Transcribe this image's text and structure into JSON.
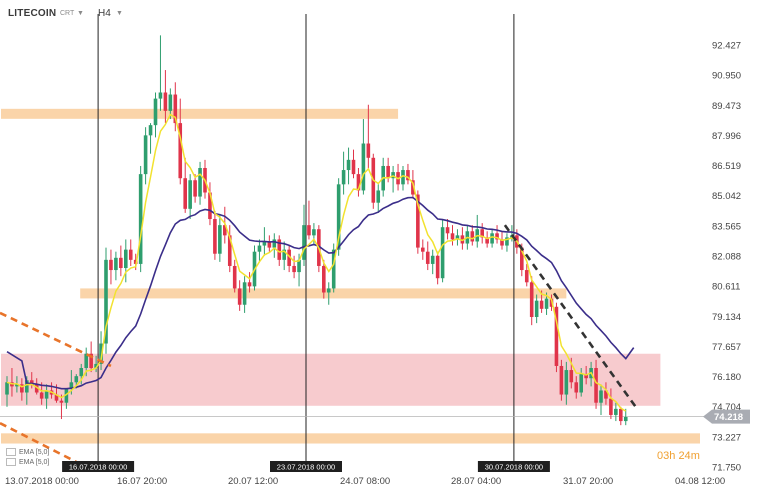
{
  "header": {
    "symbol": "LITECOIN",
    "type": "CRT",
    "timeframe": "H4"
  },
  "legend": {
    "ema1": "EMA",
    "ema1_param": "[5,0]",
    "ema2": "EMA",
    "ema2_param": "[5,0]"
  },
  "countdown": {
    "hours": "03",
    "h_unit": "h",
    "minutes": "24",
    "m_unit": "m"
  },
  "colors": {
    "bull": "#2e9e6e",
    "bear": "#e0344a",
    "ema_fast": "#f2e230",
    "ema_slow": "#3b2e8a",
    "orange_zone": "#f9cfa0",
    "red_zone": "#f6c2c6",
    "trend_orange": "#e8742a",
    "trend_dark": "#333333",
    "price_tag": "#a9acb3"
  },
  "chart_data": {
    "type": "candlestick",
    "title": "",
    "xlabel": "",
    "ylabel": "",
    "ylim": [
      71.75,
      94.2
    ],
    "y_ticks": [
      "92.427",
      "90.950",
      "89.473",
      "87.996",
      "86.519",
      "85.042",
      "83.565",
      "82.088",
      "80.611",
      "79.134",
      "77.657",
      "76.180",
      "74.704",
      "73.227",
      "71.750"
    ],
    "x_ticks": [
      "13.07.2018  00:00",
      "16.07  20:00",
      "20.07  12:00",
      "24.07  08:00",
      "28.07  04:00",
      "31.07  20:00",
      "04.08  12:00"
    ],
    "current_price": "74.218",
    "vertical_markers": [
      {
        "label": "16.07.2018 00:00",
        "bar": 18
      },
      {
        "label": "23.07.2018 00:00",
        "bar": 60
      },
      {
        "label": "30.07.2018 00:00",
        "bar": 102
      }
    ],
    "zones": [
      {
        "kind": "orange",
        "from_bar": 0,
        "to_bar": 79,
        "low": 88.9,
        "high": 89.3
      },
      {
        "kind": "orange",
        "from_bar": 16,
        "to_bar": 113,
        "low": 80.1,
        "high": 80.5
      },
      {
        "kind": "red",
        "from_bar": 0,
        "to_bar": 132,
        "low": 74.75,
        "high": 77.3
      },
      {
        "kind": "orange",
        "from_bar": 0,
        "to_bar": 140,
        "low": 72.9,
        "high": 73.4
      }
    ],
    "trendlines": [
      {
        "color": "orange",
        "from": [
          0,
          79.3
        ],
        "to": [
          21,
          76.7
        ]
      },
      {
        "color": "orange",
        "from": [
          0,
          73.9
        ],
        "to": [
          14,
          72.0
        ]
      },
      {
        "color": "dark",
        "from": [
          102,
          83.6
        ],
        "to": [
          127,
          74.7
        ]
      }
    ],
    "candles_ohlc": [
      [
        75.3,
        76.2,
        74.7,
        75.9
      ],
      [
        75.9,
        76.6,
        75.2,
        75.7
      ],
      [
        75.7,
        76.2,
        75.4,
        75.8
      ],
      [
        75.8,
        76.1,
        75.0,
        75.4
      ],
      [
        75.4,
        76.2,
        74.8,
        76.0
      ],
      [
        76.0,
        76.4,
        75.6,
        75.8
      ],
      [
        75.8,
        76.1,
        75.3,
        75.4
      ],
      [
        75.4,
        75.9,
        74.8,
        75.1
      ],
      [
        75.1,
        75.8,
        74.6,
        75.5
      ],
      [
        75.5,
        75.9,
        75.1,
        75.3
      ],
      [
        75.3,
        75.8,
        74.9,
        75.0
      ],
      [
        75.0,
        75.3,
        74.1,
        74.9
      ],
      [
        74.9,
        75.2,
        74.6,
        75.6
      ],
      [
        75.6,
        76.5,
        75.3,
        75.9
      ],
      [
        75.9,
        76.3,
        75.6,
        76.2
      ],
      [
        76.2,
        76.8,
        75.8,
        76.6
      ],
      [
        76.6,
        77.6,
        76.2,
        77.3
      ],
      [
        77.3,
        77.9,
        76.4,
        76.6
      ],
      [
        76.6,
        77.2,
        76.4,
        76.8
      ],
      [
        76.8,
        78.4,
        76.5,
        77.8
      ],
      [
        77.8,
        82.5,
        77.3,
        81.9
      ],
      [
        81.9,
        82.4,
        80.7,
        81.4
      ],
      [
        81.4,
        82.3,
        80.9,
        82.0
      ],
      [
        82.0,
        82.6,
        81.1,
        81.5
      ],
      [
        81.5,
        82.9,
        80.8,
        82.4
      ],
      [
        82.4,
        82.9,
        81.6,
        81.9
      ],
      [
        81.9,
        82.2,
        81.4,
        81.7
      ],
      [
        81.7,
        86.5,
        81.3,
        86.1
      ],
      [
        86.1,
        88.4,
        85.6,
        88.0
      ],
      [
        88.0,
        88.6,
        87.1,
        88.5
      ],
      [
        88.5,
        90.1,
        87.9,
        89.8
      ],
      [
        89.8,
        92.9,
        89.2,
        90.1
      ],
      [
        90.1,
        91.2,
        88.6,
        89.2
      ],
      [
        89.2,
        90.3,
        88.8,
        90.0
      ],
      [
        90.0,
        90.6,
        88.2,
        88.6
      ],
      [
        88.6,
        89.8,
        85.6,
        85.9
      ],
      [
        85.9,
        86.9,
        84.2,
        84.4
      ],
      [
        84.4,
        86.1,
        83.9,
        85.8
      ],
      [
        85.8,
        86.1,
        84.7,
        85.0
      ],
      [
        85.0,
        86.7,
        84.6,
        86.4
      ],
      [
        86.4,
        86.8,
        84.9,
        85.2
      ],
      [
        85.2,
        85.7,
        83.6,
        83.9
      ],
      [
        83.9,
        84.3,
        81.9,
        82.2
      ],
      [
        82.2,
        84.1,
        81.8,
        83.6
      ],
      [
        83.6,
        84.5,
        82.7,
        83.1
      ],
      [
        83.1,
        83.6,
        81.3,
        81.6
      ],
      [
        81.6,
        81.9,
        80.3,
        80.5
      ],
      [
        80.5,
        80.9,
        79.4,
        79.7
      ],
      [
        79.7,
        81.1,
        79.3,
        80.8
      ],
      [
        80.8,
        81.3,
        80.3,
        80.6
      ],
      [
        80.6,
        82.6,
        80.4,
        82.3
      ],
      [
        82.3,
        82.9,
        81.8,
        82.6
      ],
      [
        82.6,
        83.5,
        82.1,
        82.8
      ],
      [
        82.8,
        83.1,
        82.3,
        82.5
      ],
      [
        82.5,
        83.2,
        82.0,
        82.9
      ],
      [
        82.9,
        83.1,
        81.6,
        81.9
      ],
      [
        81.9,
        82.8,
        81.4,
        82.4
      ],
      [
        82.4,
        82.6,
        81.3,
        81.6
      ],
      [
        81.6,
        82.1,
        81.0,
        81.3
      ],
      [
        81.3,
        82.2,
        80.6,
        81.9
      ],
      [
        81.9,
        84.6,
        81.6,
        83.6
      ],
      [
        83.6,
        84.8,
        82.9,
        83.1
      ],
      [
        83.1,
        83.7,
        82.6,
        83.4
      ],
      [
        83.4,
        83.6,
        81.3,
        81.6
      ],
      [
        81.6,
        81.9,
        80.0,
        80.3
      ],
      [
        80.3,
        80.8,
        79.7,
        80.5
      ],
      [
        80.5,
        82.7,
        80.3,
        82.4
      ],
      [
        82.4,
        85.9,
        82.1,
        85.6
      ],
      [
        85.6,
        87.2,
        85.1,
        86.3
      ],
      [
        86.3,
        87.4,
        85.6,
        86.8
      ],
      [
        86.8,
        87.3,
        85.9,
        86.1
      ],
      [
        86.1,
        86.4,
        85.0,
        85.3
      ],
      [
        85.3,
        88.8,
        85.1,
        87.6
      ],
      [
        87.6,
        89.5,
        86.4,
        86.9
      ],
      [
        86.9,
        87.1,
        84.4,
        84.7
      ],
      [
        84.7,
        85.6,
        84.2,
        85.3
      ],
      [
        85.3,
        86.9,
        85.0,
        86.5
      ],
      [
        86.5,
        86.9,
        85.7,
        85.9
      ],
      [
        85.9,
        86.5,
        85.2,
        86.2
      ],
      [
        86.2,
        86.6,
        85.3,
        85.6
      ],
      [
        85.6,
        86.5,
        85.3,
        86.3
      ],
      [
        86.3,
        86.6,
        85.6,
        85.8
      ],
      [
        85.8,
        86.3,
        84.9,
        85.1
      ],
      [
        85.1,
        85.3,
        82.2,
        82.5
      ],
      [
        82.5,
        82.9,
        81.9,
        82.3
      ],
      [
        82.3,
        82.8,
        81.4,
        81.7
      ],
      [
        81.7,
        82.4,
        81.2,
        82.1
      ],
      [
        82.1,
        82.3,
        80.7,
        81.0
      ],
      [
        81.0,
        83.9,
        80.8,
        83.5
      ],
      [
        83.5,
        83.9,
        82.9,
        83.2
      ],
      [
        83.2,
        83.6,
        82.6,
        82.9
      ],
      [
        82.9,
        83.4,
        82.6,
        83.1
      ],
      [
        83.1,
        83.5,
        82.4,
        82.7
      ],
      [
        82.7,
        83.6,
        82.4,
        83.3
      ],
      [
        83.3,
        83.6,
        82.6,
        82.8
      ],
      [
        82.8,
        84.1,
        82.5,
        83.4
      ],
      [
        83.4,
        83.7,
        82.7,
        83.0
      ],
      [
        83.0,
        83.3,
        82.5,
        82.7
      ],
      [
        82.7,
        83.4,
        82.5,
        83.2
      ],
      [
        83.2,
        83.6,
        82.7,
        82.9
      ],
      [
        82.9,
        83.3,
        82.4,
        82.6
      ],
      [
        82.6,
        83.2,
        82.3,
        83.0
      ],
      [
        83.0,
        83.6,
        82.8,
        83.1
      ],
      [
        83.1,
        83.4,
        82.2,
        82.5
      ],
      [
        82.5,
        82.7,
        81.1,
        81.4
      ],
      [
        81.4,
        81.7,
        80.6,
        80.8
      ],
      [
        80.8,
        81.1,
        78.7,
        79.1
      ],
      [
        79.1,
        80.2,
        78.8,
        79.9
      ],
      [
        79.9,
        80.4,
        79.3,
        79.5
      ],
      [
        79.5,
        80.3,
        79.2,
        80.0
      ],
      [
        80.0,
        80.2,
        79.4,
        79.6
      ],
      [
        79.6,
        79.8,
        76.4,
        76.7
      ],
      [
        76.7,
        77.0,
        75.0,
        75.3
      ],
      [
        75.3,
        76.9,
        74.8,
        76.5
      ],
      [
        76.5,
        77.1,
        75.6,
        75.9
      ],
      [
        75.9,
        76.2,
        75.1,
        75.4
      ],
      [
        75.4,
        76.6,
        75.2,
        76.3
      ],
      [
        76.3,
        76.7,
        75.8,
        76.1
      ],
      [
        76.1,
        76.9,
        75.7,
        76.6
      ],
      [
        76.6,
        77.0,
        74.6,
        74.9
      ],
      [
        74.9,
        75.8,
        74.3,
        75.5
      ],
      [
        75.5,
        75.9,
        74.8,
        75.1
      ],
      [
        75.1,
        75.6,
        74.1,
        74.3
      ],
      [
        74.3,
        74.9,
        74.0,
        74.6
      ],
      [
        74.6,
        74.7,
        73.8,
        74.0
      ],
      [
        74.0,
        74.6,
        73.8,
        74.2
      ]
    ]
  }
}
